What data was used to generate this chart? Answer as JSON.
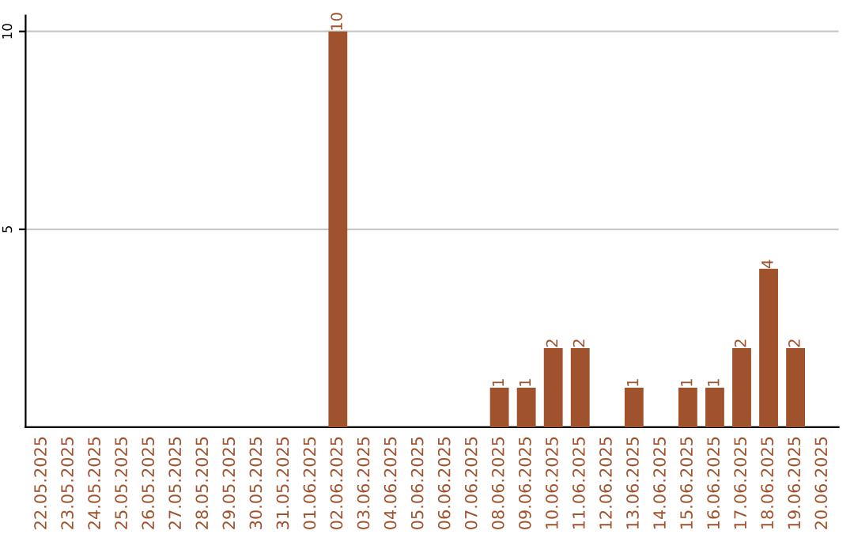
{
  "chart_data": {
    "type": "bar",
    "categories": [
      "22.05.2025",
      "23.05.2025",
      "24.05.2025",
      "25.05.2025",
      "26.05.2025",
      "27.05.2025",
      "28.05.2025",
      "29.05.2025",
      "30.05.2025",
      "31.05.2025",
      "01.06.2025",
      "02.06.2025",
      "03.06.2025",
      "04.06.2025",
      "05.06.2025",
      "06.06.2025",
      "07.06.2025",
      "08.06.2025",
      "09.06.2025",
      "10.06.2025",
      "11.06.2025",
      "12.06.2025",
      "13.06.2025",
      "14.06.2025",
      "15.06.2025",
      "16.06.2025",
      "17.06.2025",
      "18.06.2025",
      "19.06.2025",
      "20.06.2025"
    ],
    "values": [
      0,
      0,
      0,
      0,
      0,
      0,
      0,
      0,
      0,
      0,
      0,
      10,
      0,
      0,
      0,
      0,
      0,
      1,
      1,
      2,
      2,
      0,
      1,
      0,
      1,
      1,
      2,
      4,
      2,
      0
    ],
    "value_labels": [
      null,
      null,
      null,
      null,
      null,
      null,
      null,
      null,
      null,
      null,
      null,
      "10",
      null,
      null,
      null,
      null,
      null,
      "1",
      "1",
      "2",
      "2",
      null,
      "1",
      null,
      "1",
      "1",
      "2",
      "4",
      "2",
      null
    ],
    "color": "#a0522d",
    "ylim": [
      0,
      10.4
    ],
    "yticks": [
      5,
      10
    ],
    "grid": "y"
  }
}
